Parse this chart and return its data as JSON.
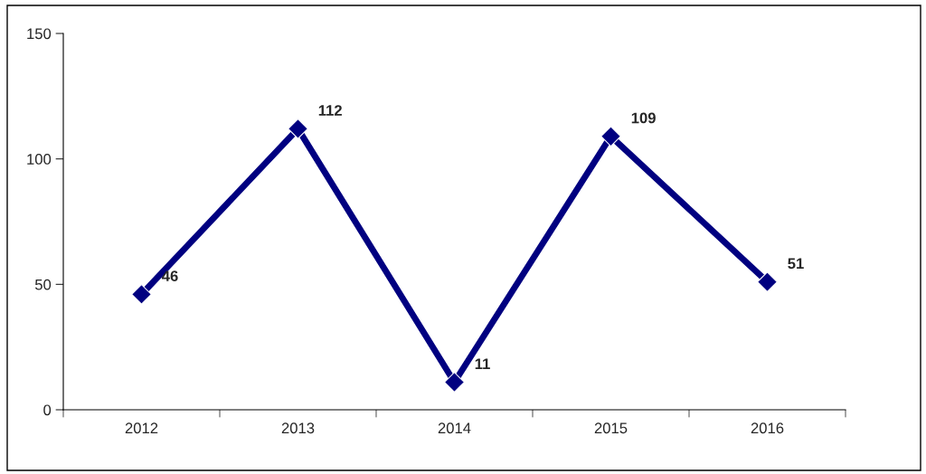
{
  "chart_data": {
    "type": "line",
    "categories": [
      "2012",
      "2013",
      "2014",
      "2015",
      "2016"
    ],
    "series": [
      {
        "color": "#000080",
        "values": [
          46,
          112,
          11,
          109,
          51
        ]
      }
    ],
    "ylim": [
      0,
      150
    ],
    "yticks": [
      0,
      50,
      100,
      150
    ],
    "grid": false,
    "marker": "diamond",
    "line_style": "solid",
    "data_labels": true
  }
}
